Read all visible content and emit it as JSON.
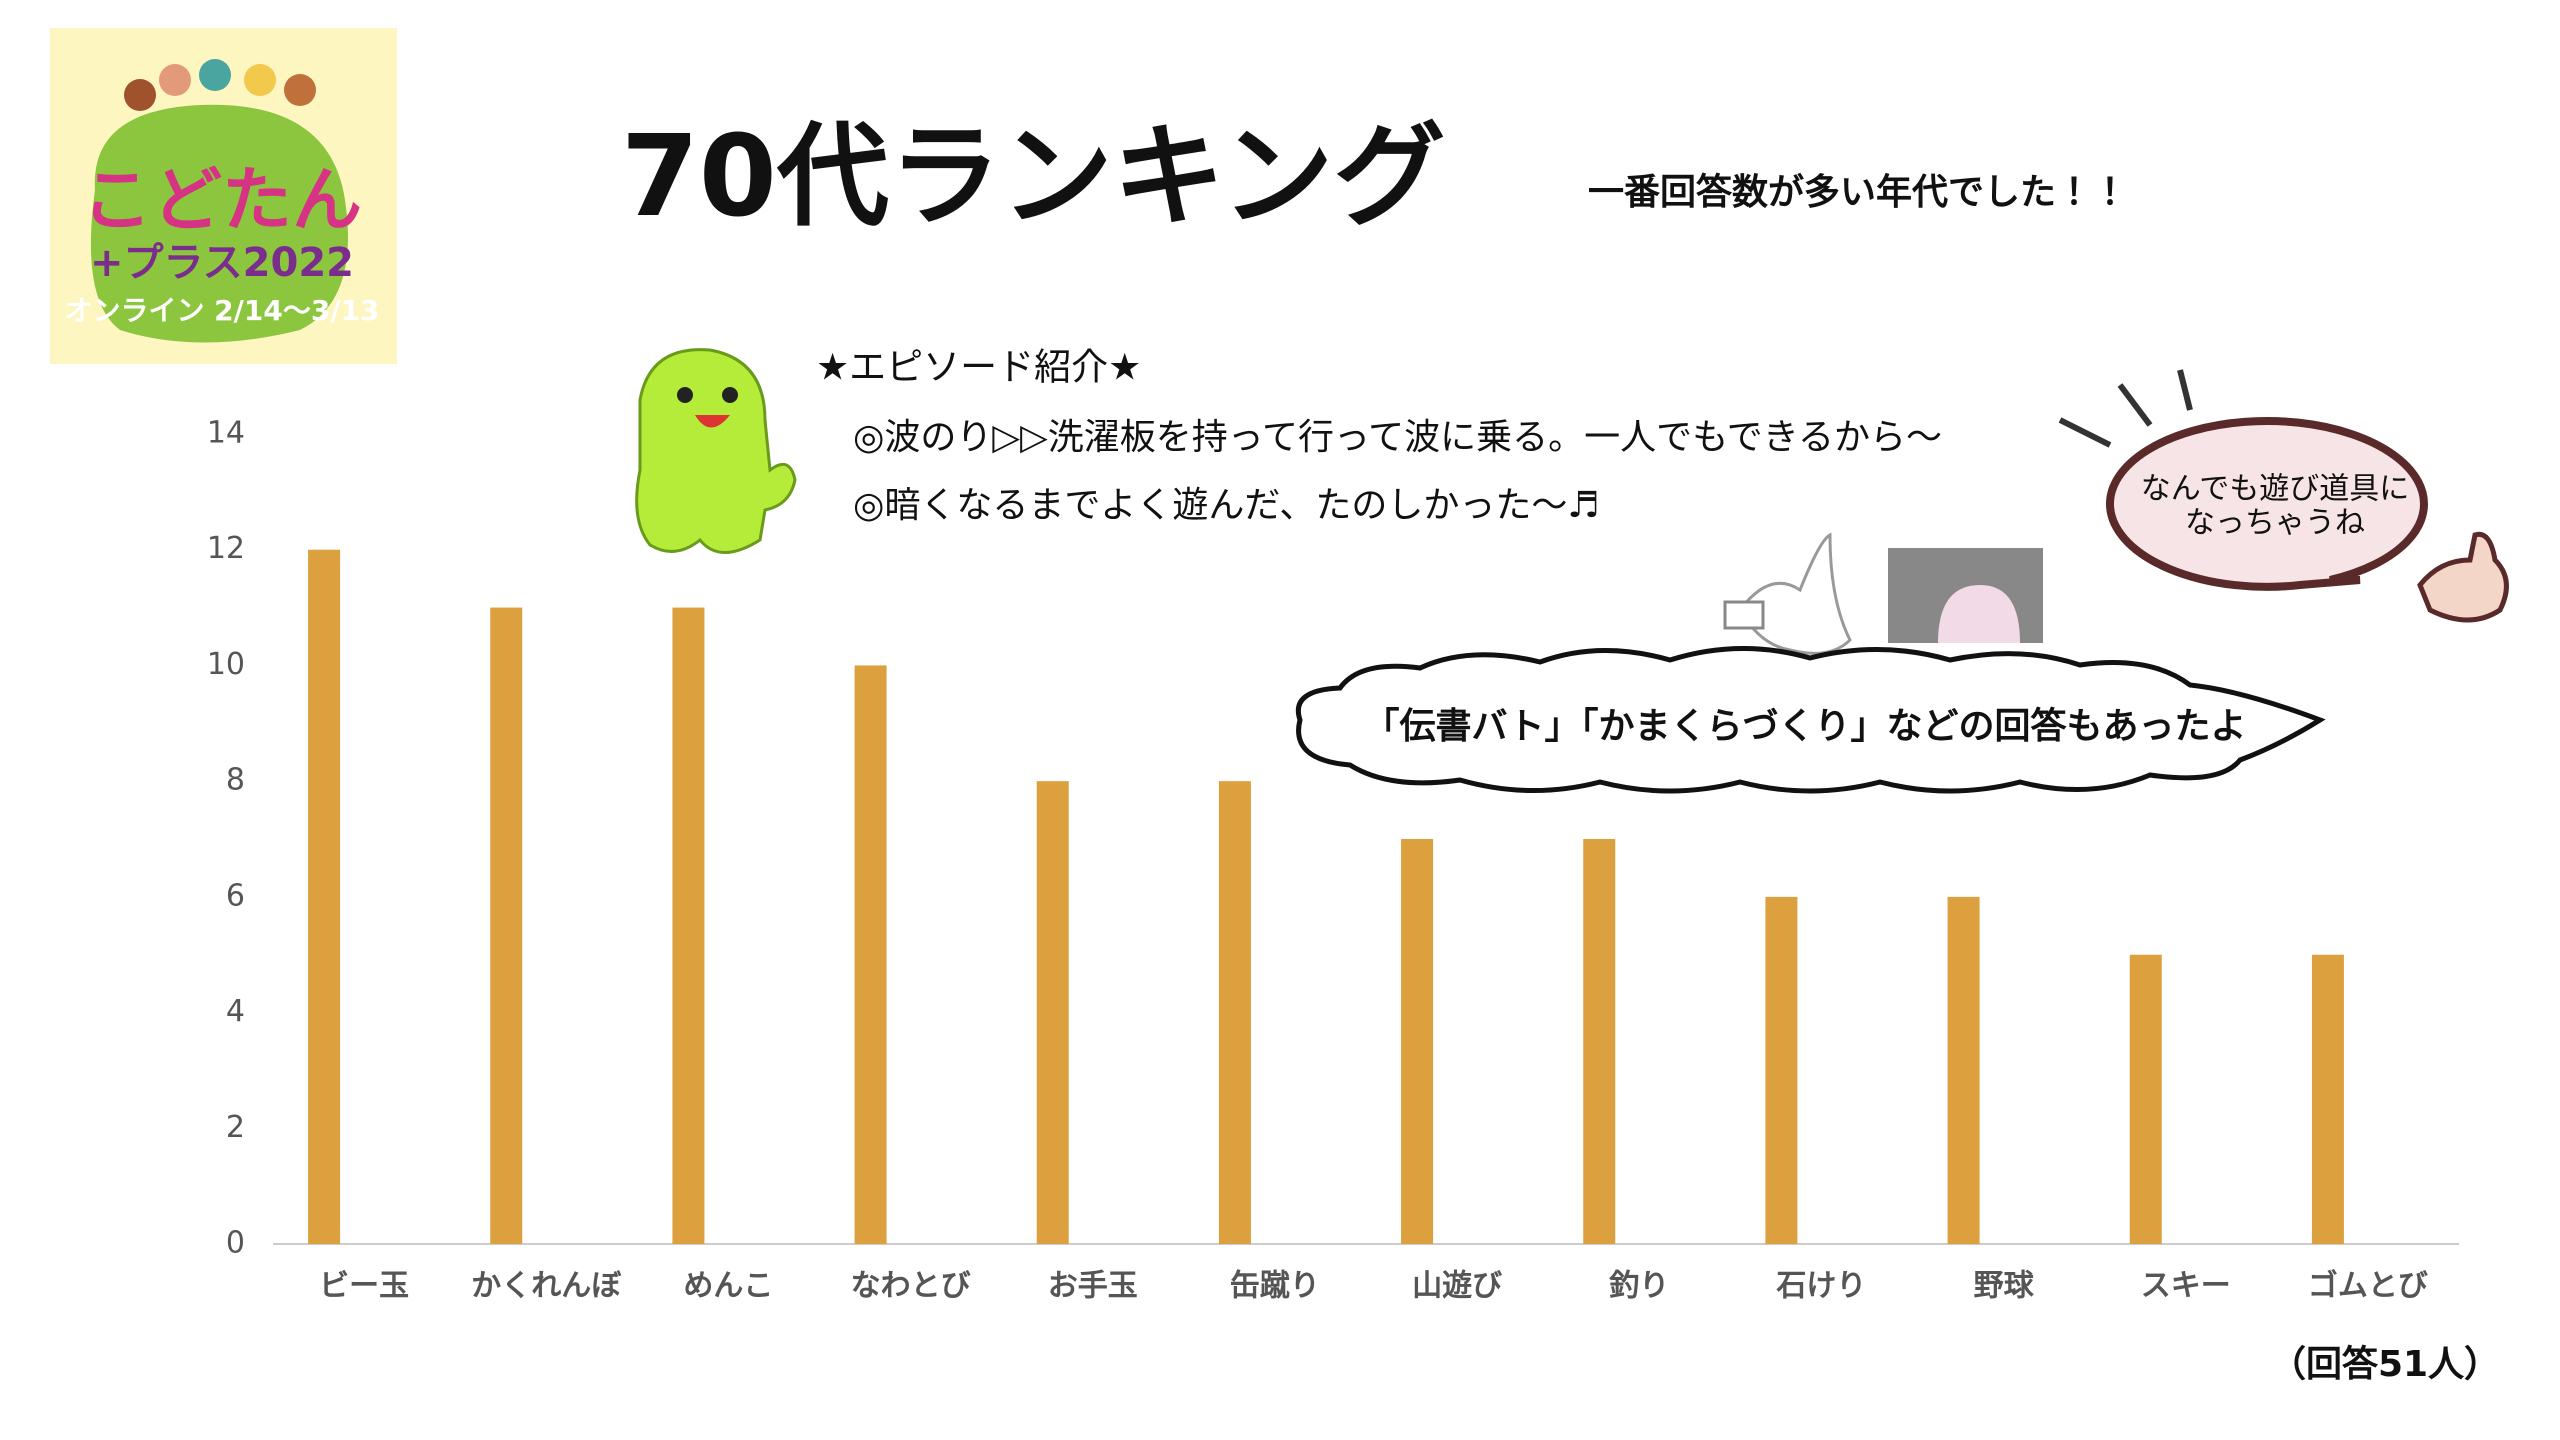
{
  "logo": {
    "name": "こどたん",
    "edition": "+プラス2022",
    "dates": "オンライン 2/14～3/13"
  },
  "chart_data": {
    "type": "bar",
    "title": "70代ランキング",
    "subtitle": "一番回答数が多い年代でした！！",
    "categories": [
      "ビー玉",
      "かくれんぼ",
      "めんこ",
      "なわとび",
      "お手玉",
      "缶蹴り",
      "山遊び",
      "釣り",
      "石けり",
      "野球",
      "スキー",
      "ゴムとび"
    ],
    "values": [
      12,
      11,
      11,
      10,
      8,
      8,
      7,
      7,
      6,
      6,
      5,
      5
    ],
    "color": "#dda03f",
    "ylim": [
      0,
      14
    ],
    "yticks": [
      0,
      2,
      4,
      6,
      8,
      10,
      12,
      14
    ],
    "grid": false,
    "note": "（回答51人）"
  },
  "episodes": {
    "heading": "★エピソード紹介★",
    "items": [
      "◎波のり▷▷洗濯板を持って行って波に乗る。一人でもできるから～",
      "◎暗くなるまでよく遊んだ、たのしかった～♬"
    ]
  },
  "bubbles": {
    "cloud": "「伝書バト」「かまくらづくり」などの回答もあったよ",
    "speech": [
      "なんでも遊び道具に",
      "なっちゃうね"
    ]
  }
}
